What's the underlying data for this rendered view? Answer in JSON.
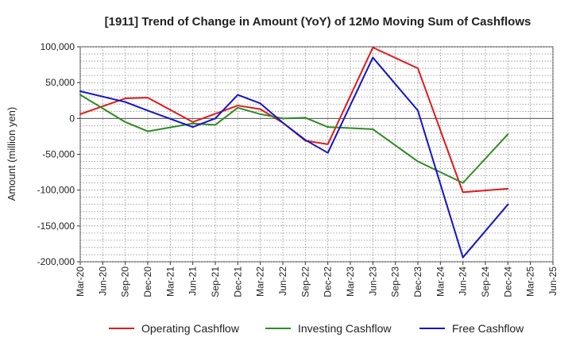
{
  "chart_data": {
    "type": "line",
    "title": "[1911]  Trend of Change in Amount (YoY) of 12Mo Moving Sum of Cashflows",
    "xlabel": "",
    "ylabel": "Amount (million yen)",
    "ylim": [
      -200000,
      100000
    ],
    "yticks": [
      100000,
      50000,
      0,
      -50000,
      -100000,
      -150000,
      -200000
    ],
    "ytick_labels": [
      "100,000",
      "50,000",
      "0",
      "-50,000",
      "-100,000",
      "-150,000",
      "-200,000"
    ],
    "grid": true,
    "legend_position": "bottom",
    "categories": [
      "Mar-20",
      "Jun-20",
      "Sep-20",
      "Dec-20",
      "Mar-21",
      "Jun-21",
      "Sep-21",
      "Dec-21",
      "Mar-22",
      "Jun-22",
      "Sep-22",
      "Dec-22",
      "Mar-23",
      "Jun-23",
      "Sep-23",
      "Dec-23",
      "Mar-24",
      "Jun-24",
      "Sep-24",
      "Dec-24",
      "Mar-25",
      "Jun-25"
    ],
    "series": [
      {
        "name": "Operating Cashflow",
        "color": "#e31a1c",
        "values": [
          6000,
          null,
          28000,
          29000,
          null,
          -5000,
          null,
          18000,
          13000,
          -6000,
          -31000,
          -36000,
          null,
          99000,
          null,
          70000,
          null,
          -103000,
          null,
          -98000,
          null,
          null
        ]
      },
      {
        "name": "Investing Cashflow",
        "color": "#2e8b22",
        "values": [
          33000,
          null,
          -5000,
          -18000,
          null,
          -7000,
          -9000,
          15000,
          6000,
          0,
          1000,
          -12000,
          null,
          -15000,
          null,
          -60000,
          null,
          -90000,
          null,
          -22000,
          null,
          null
        ]
      },
      {
        "name": "Free Cashflow",
        "color": "#1414c8",
        "values": [
          38000,
          null,
          23000,
          11000,
          null,
          -12000,
          0,
          33000,
          21000,
          -6000,
          -30000,
          -48000,
          null,
          85000,
          null,
          11000,
          null,
          -194000,
          null,
          -120000,
          null,
          null
        ]
      }
    ]
  }
}
